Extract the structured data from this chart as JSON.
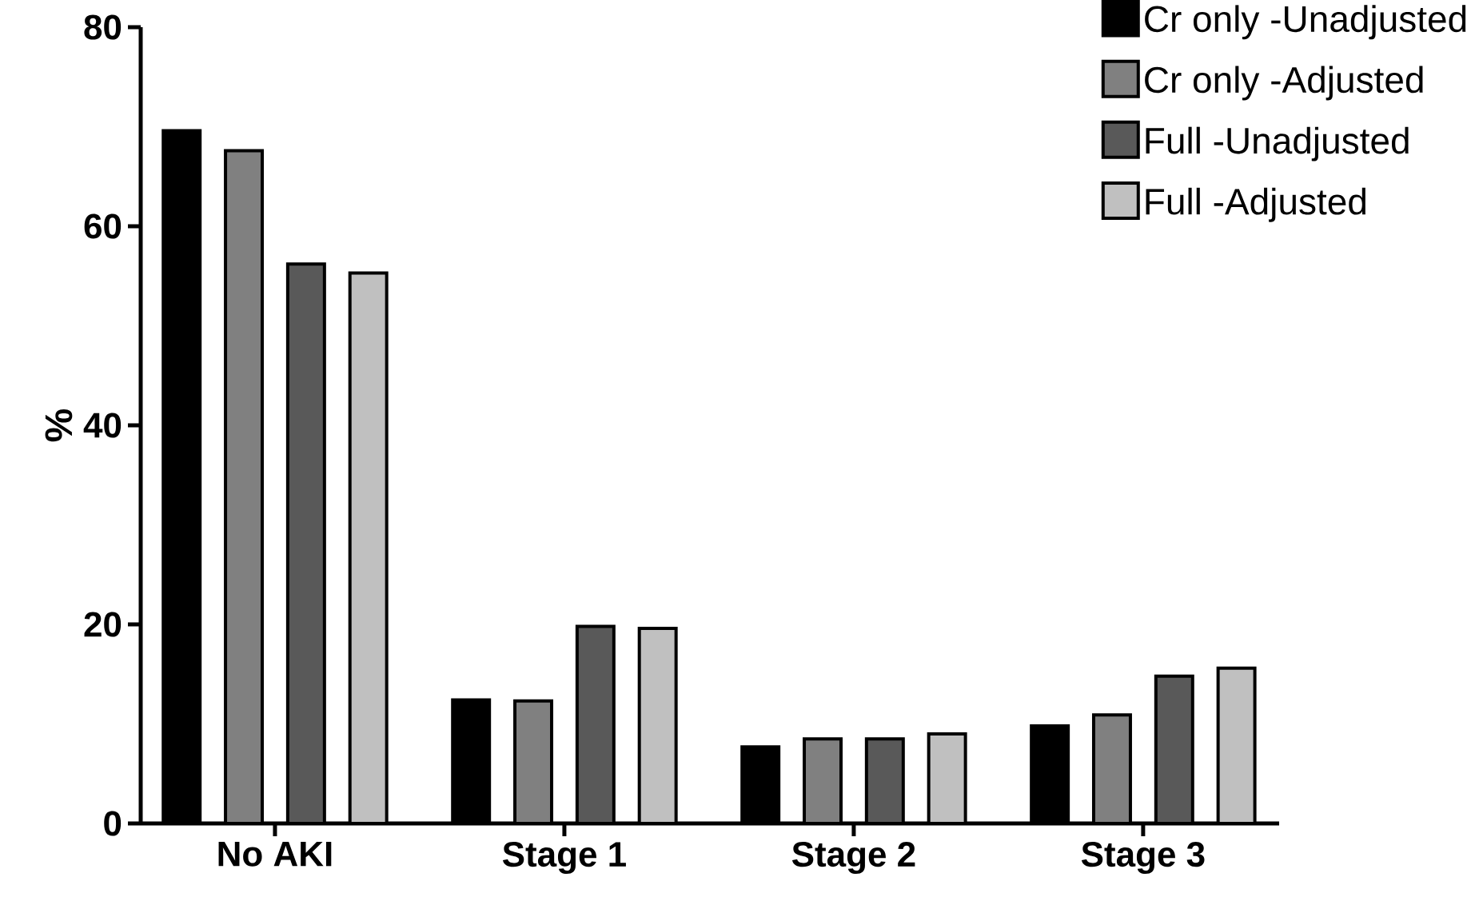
{
  "chart_data": {
    "type": "bar",
    "ylabel": "%",
    "categories": [
      "No AKI",
      "Stage 1",
      "Stage 2",
      "Stage 3"
    ],
    "series": [
      {
        "name": "Cr only -Unadjusted",
        "color": "#000000",
        "values": [
          69.6,
          12.4,
          7.7,
          9.8
        ]
      },
      {
        "name": "Cr only -Adjusted",
        "color": "#808080",
        "values": [
          67.6,
          12.3,
          8.5,
          10.9
        ]
      },
      {
        "name": "Full -Unadjusted",
        "color": "#595959",
        "values": [
          56.2,
          19.8,
          8.5,
          14.8
        ]
      },
      {
        "name": "Full -Adjusted",
        "color": "#c0c0c0",
        "values": [
          55.3,
          19.6,
          9.0,
          15.6
        ]
      }
    ],
    "ylim": [
      0,
      80
    ],
    "yticks": [
      0,
      20,
      40,
      60,
      80
    ],
    "legend": "top right"
  }
}
